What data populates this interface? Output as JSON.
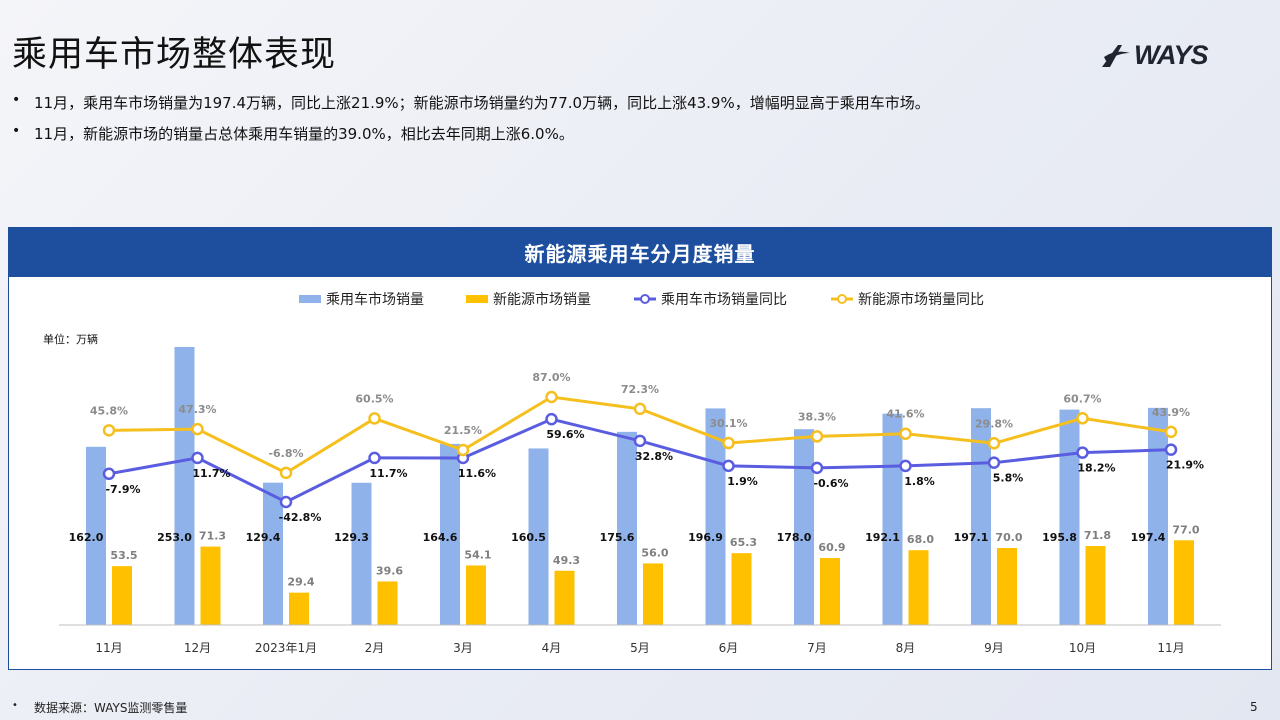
{
  "page": {
    "title": "乘用车市场整体表现",
    "logo_text": "WAYS",
    "bullets": [
      "11月，乘用车市场销量为197.4万辆，同比上涨21.9%；新能源市场销量约为77.0万辆，同比上涨43.9%，增幅明显高于乘用车市场。",
      "11月，新能源市场的销量占总体乘用车销量的39.0%，相比去年同期上涨6.0%。"
    ],
    "bullet_marker": "•",
    "footer": "数据来源：WAYS监测零售量",
    "page_number": "5"
  },
  "chart_data": {
    "type": "bar",
    "title": "新能源乘用车分月度销量",
    "unit_label": "单位：万辆",
    "categories": [
      "11月",
      "12月",
      "2023年1月",
      "2月",
      "3月",
      "4月",
      "5月",
      "6月",
      "7月",
      "8月",
      "9月",
      "10月",
      "11月"
    ],
    "series": [
      {
        "name": "乘用车市场销量",
        "kind": "bar",
        "color": "#8fb2ea",
        "values": [
          162.0,
          253.0,
          129.4,
          129.3,
          164.6,
          160.5,
          175.6,
          196.9,
          178.0,
          192.1,
          197.1,
          195.8,
          197.4
        ],
        "labels": [
          "162.0",
          "253.0",
          "129.4",
          "129.3",
          "164.6",
          "160.5",
          "175.6",
          "196.9",
          "178.0",
          "192.1",
          "197.1",
          "195.8",
          "197.4"
        ]
      },
      {
        "name": "新能源市场销量",
        "kind": "bar",
        "color": "#ffc000",
        "values": [
          53.5,
          71.3,
          29.4,
          39.6,
          54.1,
          49.3,
          56.0,
          65.3,
          60.9,
          68.0,
          70.0,
          71.8,
          77.0
        ],
        "labels": [
          "53.5",
          "71.3",
          "29.4",
          "39.6",
          "54.1",
          "49.3",
          "56.0",
          "65.3",
          "60.9",
          "68.0",
          "70.0",
          "71.8",
          "77.0"
        ]
      },
      {
        "name": "乘用车市场销量同比",
        "kind": "line",
        "color": "#5a5de0",
        "values": [
          -7.9,
          11.7,
          -42.8,
          11.7,
          11.6,
          59.6,
          32.8,
          1.9,
          -0.6,
          1.8,
          5.8,
          18.2,
          21.9
        ],
        "labels": [
          "-7.9%",
          "11.7%",
          "-42.8%",
          "11.7%",
          "11.6%",
          "59.6%",
          "32.8%",
          "1.9%",
          "-0.6%",
          "1.8%",
          "5.8%",
          "18.2%",
          "21.9%"
        ]
      },
      {
        "name": "新能源市场销量同比",
        "kind": "line",
        "color": "#f5bf1e",
        "values": [
          45.8,
          47.3,
          -6.8,
          60.5,
          21.5,
          87.0,
          72.3,
          30.1,
          38.3,
          41.6,
          29.8,
          60.7,
          43.9
        ],
        "labels": [
          "45.8%",
          "47.3%",
          "-6.8%",
          "60.5%",
          "21.5%",
          "87.0%",
          "72.3%",
          "30.1%",
          "38.3%",
          "41.6%",
          "29.8%",
          "60.7%",
          "43.9%"
        ]
      }
    ],
    "legend_position": "top",
    "grid": false
  }
}
